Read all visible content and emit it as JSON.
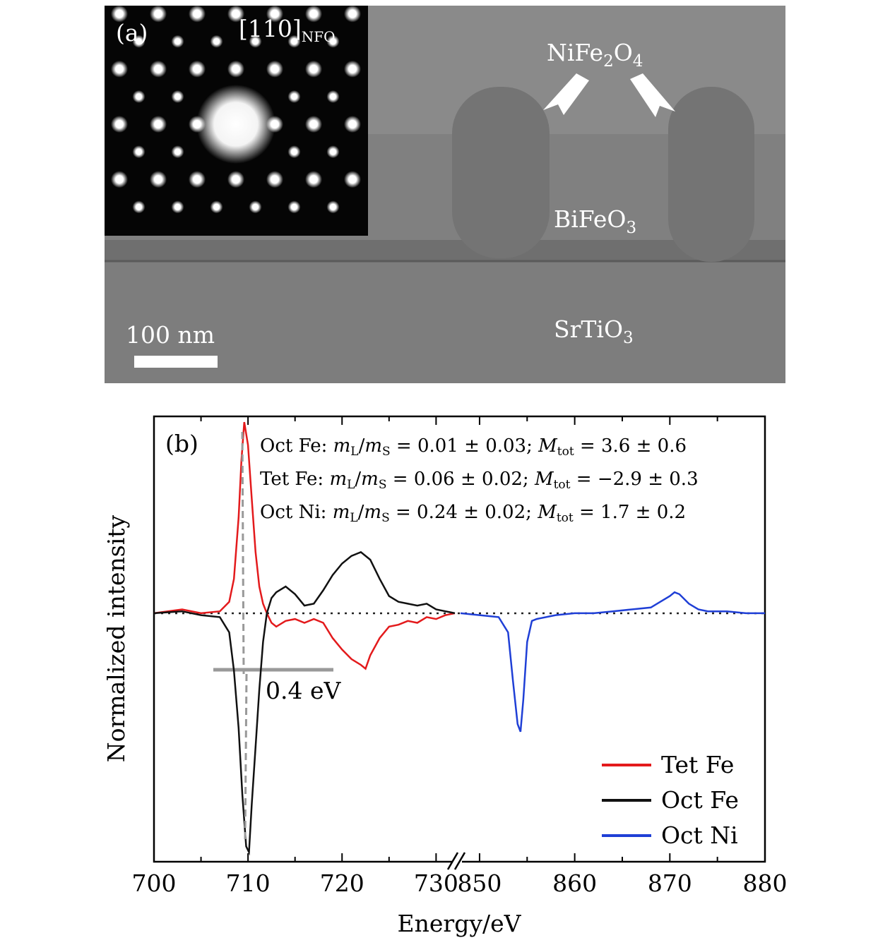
{
  "panel_a": {
    "label": "(a)",
    "zone_axis": "[110]",
    "zone_axis_sub": "NFO",
    "pillar_label_base": "NiFe",
    "pillar_label_sub1": "2",
    "pillar_label_mid": "O",
    "pillar_label_sub2": "4",
    "matrix_label_base": "BiFeO",
    "matrix_label_sub": "3",
    "substrate_label_base": "SrTiO",
    "substrate_label_sub": "3",
    "scale_bar_label": "100 nm",
    "scale_bar_length_nm": 100
  },
  "panel_b": {
    "label": "(b)",
    "annotations": [
      {
        "site": "Oct Fe:",
        "ratio": "0.01 ± 0.03",
        "mtot": "3.6 ± 0.6"
      },
      {
        "site": "Tet Fe:",
        "ratio": "0.06 ± 0.02",
        "mtot": "−2.9 ± 0.3"
      },
      {
        "site": "Oct Ni:",
        "ratio": "0.24 ± 0.02",
        "mtot": "1.7 ± 0.2"
      }
    ],
    "ratio_symbol": "m_L/m_S =",
    "mtot_symbol": "M_tot =",
    "shift_label": "0.4 eV",
    "shift_ev": 0.4
  },
  "chart_data": {
    "type": "line",
    "xlabel": "Energy/eV",
    "ylabel": "Normalized intensity",
    "broken_x_axis": true,
    "x_segments": [
      [
        700,
        732
      ],
      [
        848,
        880
      ]
    ],
    "xticks_left": [
      700,
      710,
      720,
      730
    ],
    "xticks_right": [
      850,
      860,
      870,
      880
    ],
    "ylim": [
      -1.3,
      1.03
    ],
    "zero_reference_line": true,
    "legend_position": "lower-right",
    "series": [
      {
        "name": "Tet Fe",
        "color": "#e31a1c",
        "x": [
          700,
          703,
          705,
          707,
          708,
          708.5,
          709,
          709.3,
          709.6,
          710,
          710.4,
          710.8,
          711.2,
          711.6,
          712,
          712.5,
          713,
          714,
          715,
          716,
          717,
          718,
          719,
          720,
          721,
          722,
          722.5,
          723,
          724,
          725,
          726,
          727,
          728,
          729,
          730,
          731,
          732
        ],
        "y": [
          0,
          0.02,
          0.0,
          0.01,
          0.06,
          0.18,
          0.5,
          0.8,
          1.0,
          0.88,
          0.6,
          0.32,
          0.14,
          0.05,
          0,
          -0.05,
          -0.07,
          -0.04,
          -0.03,
          -0.05,
          -0.03,
          -0.05,
          -0.13,
          -0.19,
          -0.24,
          -0.27,
          -0.29,
          -0.22,
          -0.13,
          -0.07,
          -0.06,
          -0.04,
          -0.05,
          -0.02,
          -0.03,
          -0.01,
          0
        ]
      },
      {
        "name": "Oct Fe",
        "color": "#111111",
        "x": [
          700,
          703,
          705,
          707,
          708,
          708.5,
          709,
          709.4,
          709.8,
          710.1,
          710.4,
          710.8,
          711.2,
          711.6,
          712,
          712.5,
          713,
          714,
          715,
          716,
          717,
          718,
          719,
          720,
          721,
          722,
          723,
          724,
          725,
          726,
          727,
          728,
          729,
          730,
          731,
          732
        ],
        "y": [
          0,
          0.01,
          -0.01,
          -0.02,
          -0.1,
          -0.3,
          -0.6,
          -0.95,
          -1.22,
          -1.25,
          -1.0,
          -0.7,
          -0.4,
          -0.15,
          0,
          0.08,
          0.11,
          0.14,
          0.1,
          0.04,
          0.05,
          0.12,
          0.2,
          0.26,
          0.3,
          0.32,
          0.28,
          0.18,
          0.09,
          0.06,
          0.05,
          0.04,
          0.05,
          0.02,
          0.01,
          0
        ]
      },
      {
        "name": "Oct Ni",
        "color": "#1f3fd6",
        "x": [
          848,
          850,
          852,
          853,
          853.5,
          854,
          854.3,
          854.6,
          855,
          855.5,
          856,
          858,
          860,
          862,
          864,
          866,
          868,
          869,
          870,
          870.5,
          871,
          872,
          873,
          874,
          876,
          878,
          880
        ],
        "y": [
          0,
          -0.01,
          -0.02,
          -0.1,
          -0.35,
          -0.58,
          -0.62,
          -0.45,
          -0.15,
          -0.04,
          -0.03,
          -0.01,
          0,
          0.0,
          0.01,
          0.02,
          0.03,
          0.06,
          0.09,
          0.11,
          0.1,
          0.05,
          0.02,
          0.01,
          0.01,
          0,
          0
        ]
      }
    ]
  }
}
